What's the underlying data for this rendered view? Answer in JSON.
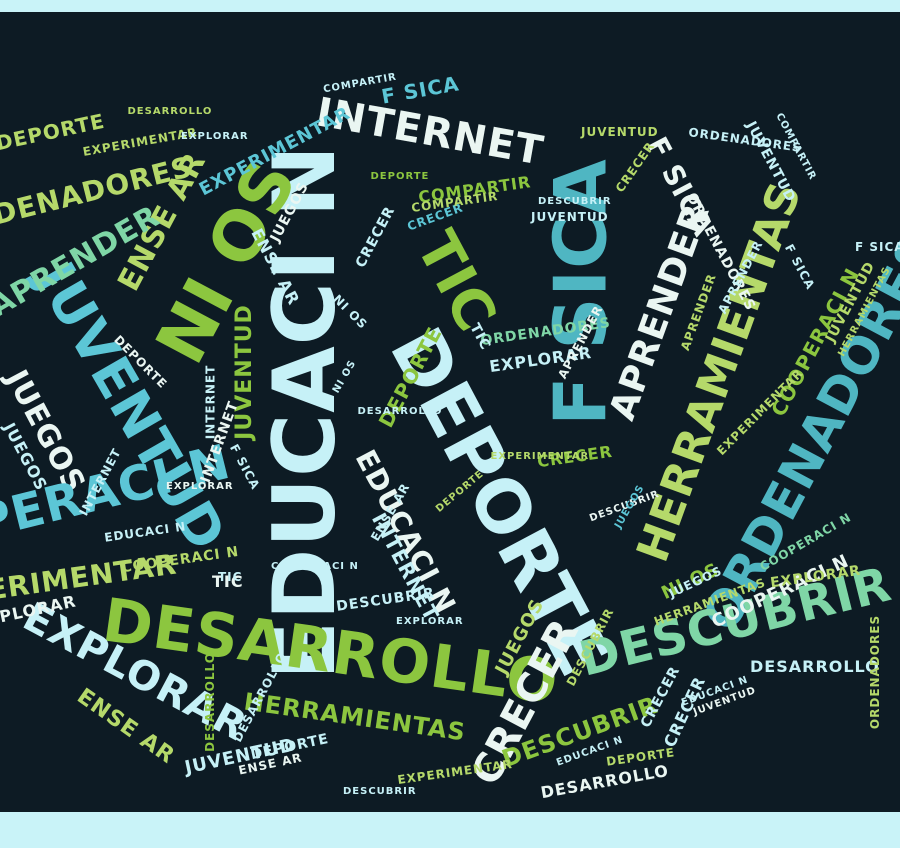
{
  "title": "",
  "palette": {
    "background": "#0d1b24",
    "frame": "#c9f3f8",
    "light_cyan": "#c6f1f7",
    "cyan": "#5cc6d6",
    "teal": "#4fb6c2",
    "green": "#8cc63f",
    "lime": "#b5d96a",
    "mint": "#7fd6a6",
    "white": "#eaf6f2"
  },
  "words": [
    {
      "text": "EDUCACI N",
      "color": "#c6f1f7"
    },
    {
      "text": "DEPORTE",
      "color": "#c6f1f7"
    },
    {
      "text": "F SICA",
      "color": "#4fb6c2"
    },
    {
      "text": "DESARROLLO",
      "color": "#8cc63f"
    },
    {
      "text": "HERRAMIENTAS",
      "color": "#b5d96a"
    },
    {
      "text": "ORDENADORES",
      "color": "#4fb6c2"
    },
    {
      "text": "JUVENTUD",
      "color": "#5cc6d6"
    },
    {
      "text": "NI OS",
      "color": "#8cc63f"
    },
    {
      "text": "DESCUBRIR",
      "color": "#7fd6a6"
    },
    {
      "text": "INTERNET",
      "color": "#eaf6f2"
    },
    {
      "text": "TIC",
      "color": "#8cc63f"
    },
    {
      "text": "APRENDER",
      "color": "#eaf6f2"
    },
    {
      "text": "EXPLORAR",
      "color": "#c6f1f7"
    },
    {
      "text": "CRECER",
      "color": "#eaf6f2"
    },
    {
      "text": "ENSE AR",
      "color": "#b5d96a"
    },
    {
      "text": "JUEGOS",
      "color": "#eaf6f2"
    },
    {
      "text": "COOPERACI N",
      "color": "#5cc6d6"
    },
    {
      "text": "EXPERIMENTAR",
      "color": "#b5d96a"
    },
    {
      "text": "ORDENADORES",
      "color": "#b5d96a"
    },
    {
      "text": "ENSE AR",
      "color": "#b5d96a"
    },
    {
      "text": "EXPLORAR",
      "color": "#eaf6f2"
    },
    {
      "text": "HERRAMIENTAS",
      "color": "#8cc63f"
    },
    {
      "text": "JUVENTUD",
      "color": "#c6f1f7"
    },
    {
      "text": "DESCUBRIR",
      "color": "#8cc63f"
    },
    {
      "text": "COMPARTIR",
      "color": "#8cc63f"
    },
    {
      "text": "CRECER",
      "color": "#8cc63f"
    },
    {
      "text": "F SICA",
      "color": "#eaf6f2"
    },
    {
      "text": "JUVENTUD",
      "color": "#8cc63f"
    },
    {
      "text": "COOPERACI N",
      "color": "#eaf6f2"
    },
    {
      "text": "DEPORTE",
      "color": "#8cc63f"
    },
    {
      "text": "EDUCACI N",
      "color": "#eaf6f2"
    },
    {
      "text": "INTERNET",
      "color": "#c6f1f7"
    },
    {
      "text": "EXPERIMENTAR",
      "color": "#5cc6d6"
    },
    {
      "text": "CRECER",
      "color": "#5cc6d6"
    },
    {
      "text": "DESARROLLO",
      "color": "#c6f1f7"
    },
    {
      "text": "EXPLORAR",
      "color": "#b5d96a"
    },
    {
      "text": "NI OS",
      "color": "#8cc63f"
    },
    {
      "text": "JUEGOS",
      "color": "#b5d96a"
    },
    {
      "text": "APRENDER",
      "color": "#7fd6a6"
    },
    {
      "text": "ENSE AR",
      "color": "#c6f1f7"
    },
    {
      "text": "ORDENADORES",
      "color": "#eaf6f2"
    },
    {
      "text": "COOPERACI N",
      "color": "#8cc63f"
    },
    {
      "text": "EDUCACI N",
      "color": "#c6f1f7"
    },
    {
      "text": "DESCUBRIR",
      "color": "#c6f1f7"
    },
    {
      "text": "JUEGOS",
      "color": "#c6f1f7"
    },
    {
      "text": "DEPORTE",
      "color": "#b5d96a"
    },
    {
      "text": "DESARROLLO",
      "color": "#eaf6f2"
    },
    {
      "text": "JUVENTUD",
      "color": "#c6f1f7"
    },
    {
      "text": "TIC",
      "color": "#eaf6f2"
    },
    {
      "text": "EXPERIMENTAR",
      "color": "#b5d96a"
    },
    {
      "text": "DEPORTE",
      "color": "#c6f1f7"
    },
    {
      "text": "EXPLORAR",
      "color": "#eaf6f2"
    },
    {
      "text": "COOPERACI N",
      "color": "#7fd6a6"
    },
    {
      "text": "CRECER",
      "color": "#c6f1f7"
    },
    {
      "text": "INTERNET",
      "color": "#c6f1f7"
    },
    {
      "text": "DESARROLLO",
      "color": "#8cc63f"
    },
    {
      "text": "ENSE AR",
      "color": "#eaf6f2"
    },
    {
      "text": "EXPLORAR",
      "color": "#c6f1f7"
    },
    {
      "text": "ORDENADORES",
      "color": "#7fd6a6"
    },
    {
      "text": "JUVENTUD",
      "color": "#b5d96a"
    },
    {
      "text": "DESARROLLO",
      "color": "#b5d96a"
    },
    {
      "text": "DESCUBRIR",
      "color": "#b5d96a"
    },
    {
      "text": "APRENDER",
      "color": "#b5d96a"
    },
    {
      "text": "EXPERIMENTAR",
      "color": "#b5d96a"
    },
    {
      "text": "COMPARTIR",
      "color": "#c6f1f7"
    },
    {
      "text": "F SICA",
      "color": "#5cc6d6"
    },
    {
      "text": "JUEGOS",
      "color": "#eaf6f2"
    },
    {
      "text": "DEPORTE",
      "color": "#eaf6f2"
    },
    {
      "text": "DESCUBRIR",
      "color": "#c6f1f7"
    },
    {
      "text": "ENSE AR",
      "color": "#c6f1f7"
    },
    {
      "text": "CRECER",
      "color": "#b5d96a"
    },
    {
      "text": "COOPERACI N",
      "color": "#b5d96a"
    },
    {
      "text": "NI OS",
      "color": "#c6f1f7"
    },
    {
      "text": "TIC",
      "color": "#c6f1f7"
    },
    {
      "text": "INTERNET",
      "color": "#eaf6f2"
    },
    {
      "text": "DEPORTE",
      "color": "#b5d96a"
    },
    {
      "text": "EXPLORAR",
      "color": "#c6f1f7"
    },
    {
      "text": "JUVENTUD",
      "color": "#eaf6f2"
    },
    {
      "text": "DESCUBRIR",
      "color": "#eaf6f2"
    },
    {
      "text": "ORDENADORES",
      "color": "#b5d96a"
    },
    {
      "text": "EDUCACI N",
      "color": "#c6f1f7"
    },
    {
      "text": "HERRAMIENTAS",
      "color": "#b5d96a"
    },
    {
      "text": "JUEGOS",
      "color": "#5cc6d6"
    },
    {
      "text": "EXPERIMENTAR",
      "color": "#b5d96a"
    },
    {
      "text": "COMPARTIR",
      "color": "#b5d96a"
    },
    {
      "text": "DESARROLLO",
      "color": "#c6f1f7"
    },
    {
      "text": "F SICA",
      "color": "#c6f1f7"
    },
    {
      "text": "CRECER",
      "color": "#c6f1f7"
    },
    {
      "text": "NI OS",
      "color": "#c6f1f7"
    },
    {
      "text": "APRENDER",
      "color": "#eaf6f2"
    },
    {
      "text": "JUVENTUD",
      "color": "#c6f1f7"
    },
    {
      "text": "DEPORTE",
      "color": "#8cc63f"
    },
    {
      "text": "COOPERACI N",
      "color": "#c6f1f7"
    },
    {
      "text": "INTERNET",
      "color": "#c6f1f7"
    },
    {
      "text": "EDUCACI N",
      "color": "#c6f1f7"
    },
    {
      "text": "F SICA",
      "color": "#c6f1f7"
    },
    {
      "text": "DESCUBRIR",
      "color": "#c6f1f7"
    },
    {
      "text": "COMPARTIR",
      "color": "#c6f1f7"
    },
    {
      "text": "CRECER",
      "color": "#c6f1f7"
    },
    {
      "text": "EXPLORAR",
      "color": "#c6f1f7"
    },
    {
      "text": "ORDENADORES",
      "color": "#c6f1f7"
    },
    {
      "text": "DESARROLLO",
      "color": "#c6f1f7"
    },
    {
      "text": "APRENDER",
      "color": "#c6f1f7"
    },
    {
      "text": "DEPORTE",
      "color": "#b5d96a"
    },
    {
      "text": "JUVENTUD",
      "color": "#b5d96a"
    },
    {
      "text": "HERRAMIENTAS",
      "color": "#b5d96a"
    },
    {
      "text": "EXPERIMENTAR",
      "color": "#b5d96a"
    },
    {
      "text": "JUEGOS",
      "color": "#c6f1f7"
    },
    {
      "text": "TIC",
      "color": "#c6f1f7"
    },
    {
      "text": "F SICA",
      "color": "#c6f1f7"
    }
  ]
}
